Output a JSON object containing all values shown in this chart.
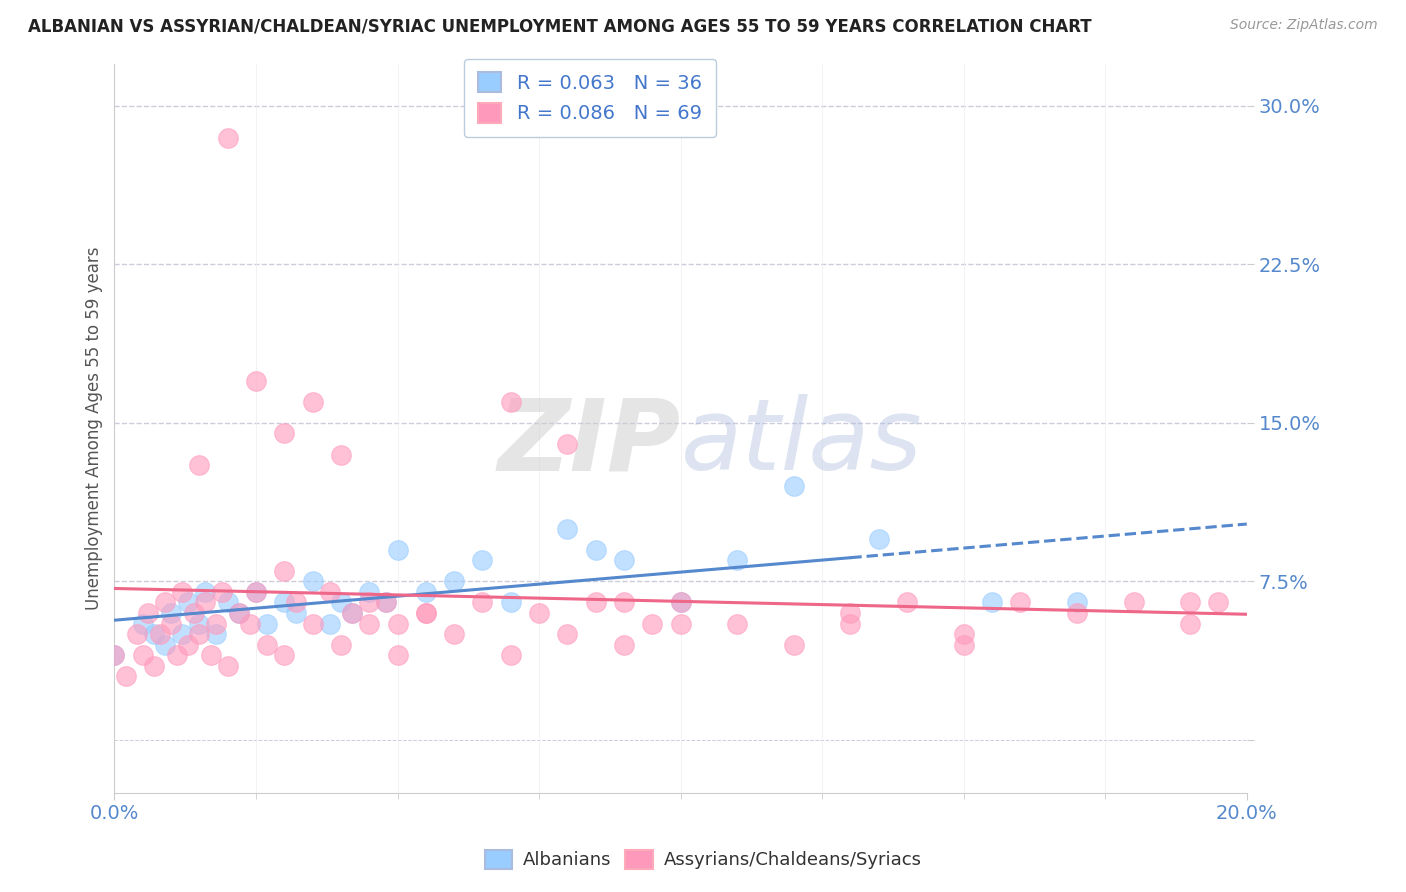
{
  "title": "ALBANIAN VS ASSYRIAN/CHALDEAN/SYRIAC UNEMPLOYMENT AMONG AGES 55 TO 59 YEARS CORRELATION CHART",
  "source": "Source: ZipAtlas.com",
  "ylabel": "Unemployment Among Ages 55 to 59 years",
  "legend_r1": "R = 0.063",
  "legend_n1": "N = 36",
  "legend_r2": "R = 0.086",
  "legend_n2": "N = 69",
  "color_albanian": "#99CCFF",
  "color_assyrian": "#FF99BB",
  "color_albanian_line": "#5588CC",
  "color_assyrian_line": "#EE6688",
  "xmin": 0.0,
  "xmax": 0.2,
  "ymin": -0.025,
  "ymax": 0.32,
  "ytick_vals": [
    0.0,
    0.075,
    0.15,
    0.225,
    0.3
  ],
  "ytick_labels": [
    "",
    "7.5%",
    "15.0%",
    "22.5%",
    "30.0%"
  ],
  "alb_x": [
    0.0,
    0.005,
    0.007,
    0.009,
    0.01,
    0.012,
    0.013,
    0.015,
    0.016,
    0.018,
    0.02,
    0.022,
    0.025,
    0.027,
    0.03,
    0.032,
    0.035,
    0.038,
    0.04,
    0.042,
    0.045,
    0.048,
    0.05,
    0.055,
    0.06,
    0.065,
    0.07,
    0.08,
    0.085,
    0.09,
    0.1,
    0.11,
    0.12,
    0.135,
    0.155,
    0.17
  ],
  "alb_y": [
    0.04,
    0.055,
    0.05,
    0.045,
    0.06,
    0.05,
    0.065,
    0.055,
    0.07,
    0.05,
    0.065,
    0.06,
    0.07,
    0.055,
    0.065,
    0.06,
    0.075,
    0.055,
    0.065,
    0.06,
    0.07,
    0.065,
    0.09,
    0.07,
    0.075,
    0.085,
    0.065,
    0.1,
    0.09,
    0.085,
    0.065,
    0.085,
    0.12,
    0.095,
    0.065,
    0.065
  ],
  "ass_x": [
    0.0,
    0.002,
    0.004,
    0.005,
    0.006,
    0.007,
    0.008,
    0.009,
    0.01,
    0.011,
    0.012,
    0.013,
    0.014,
    0.015,
    0.016,
    0.017,
    0.018,
    0.019,
    0.02,
    0.022,
    0.024,
    0.025,
    0.027,
    0.03,
    0.032,
    0.035,
    0.038,
    0.04,
    0.042,
    0.045,
    0.048,
    0.05,
    0.055,
    0.06,
    0.065,
    0.07,
    0.075,
    0.08,
    0.085,
    0.09,
    0.095,
    0.1,
    0.11,
    0.12,
    0.13,
    0.14,
    0.15,
    0.16,
    0.17,
    0.18,
    0.19,
    0.195,
    0.02,
    0.025,
    0.03,
    0.035,
    0.04,
    0.045,
    0.05,
    0.055,
    0.07,
    0.08,
    0.09,
    0.1,
    0.13,
    0.15,
    0.19,
    0.03,
    0.015
  ],
  "ass_y": [
    0.04,
    0.03,
    0.05,
    0.04,
    0.06,
    0.035,
    0.05,
    0.065,
    0.055,
    0.04,
    0.07,
    0.045,
    0.06,
    0.05,
    0.065,
    0.04,
    0.055,
    0.07,
    0.035,
    0.06,
    0.055,
    0.07,
    0.045,
    0.04,
    0.065,
    0.055,
    0.07,
    0.045,
    0.06,
    0.055,
    0.065,
    0.04,
    0.06,
    0.05,
    0.065,
    0.04,
    0.06,
    0.05,
    0.065,
    0.045,
    0.055,
    0.065,
    0.055,
    0.045,
    0.06,
    0.065,
    0.05,
    0.065,
    0.06,
    0.065,
    0.055,
    0.065,
    0.285,
    0.17,
    0.145,
    0.16,
    0.135,
    0.065,
    0.055,
    0.06,
    0.16,
    0.14,
    0.065,
    0.055,
    0.055,
    0.045,
    0.065,
    0.08,
    0.13
  ]
}
